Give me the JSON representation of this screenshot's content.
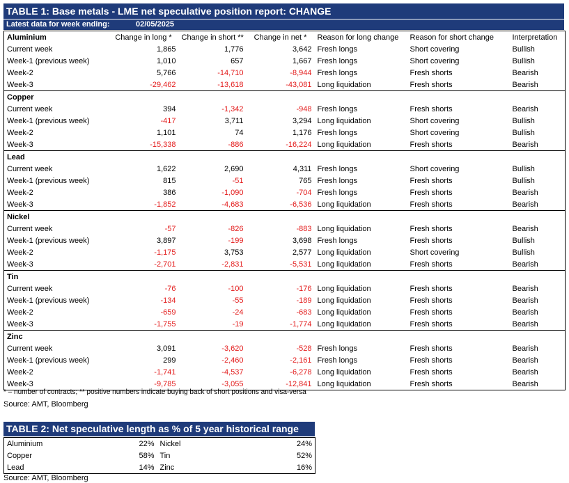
{
  "table1": {
    "title": "TABLE 1: Base metals - LME net speculative position report: CHANGE",
    "date_label": "Latest data for week ending:",
    "date_value": "02/05/2025",
    "columns": [
      "",
      "Change in long *",
      "Change in short **",
      "Change in net *",
      "Reason for long change",
      "Reason for short change",
      "Interpretation"
    ],
    "groups": [
      {
        "name": "Aluminium",
        "rows": [
          [
            "Current week",
            "1,865",
            "1,776",
            "3,642",
            "Fresh longs",
            "Short covering",
            "Bullish"
          ],
          [
            "Week-1 (previous week)",
            "1,010",
            "657",
            "1,667",
            "Fresh longs",
            "Short covering",
            "Bullish"
          ],
          [
            "Week-2",
            "5,766",
            "-14,710",
            "-8,944",
            "Fresh longs",
            "Fresh shorts",
            "Bearish"
          ],
          [
            "Week-3",
            "-29,462",
            "-13,618",
            "-43,081",
            "Long liquidation",
            "Fresh shorts",
            "Bearish"
          ]
        ]
      },
      {
        "name": "Copper",
        "rows": [
          [
            "Current week",
            "394",
            "-1,342",
            "-948",
            "Fresh longs",
            "Fresh shorts",
            "Bearish"
          ],
          [
            "Week-1 (previous week)",
            "-417",
            "3,711",
            "3,294",
            "Long liquidation",
            "Short covering",
            "Bullish"
          ],
          [
            "Week-2",
            "1,101",
            "74",
            "1,176",
            "Fresh longs",
            "Short covering",
            "Bullish"
          ],
          [
            "Week-3",
            "-15,338",
            "-886",
            "-16,224",
            "Long liquidation",
            "Fresh shorts",
            "Bearish"
          ]
        ]
      },
      {
        "name": "Lead",
        "rows": [
          [
            "Current week",
            "1,622",
            "2,690",
            "4,311",
            "Fresh longs",
            "Short covering",
            "Bullish"
          ],
          [
            "Week-1 (previous week)",
            "815",
            "-51",
            "765",
            "Fresh longs",
            "Fresh shorts",
            "Bullish"
          ],
          [
            "Week-2",
            "386",
            "-1,090",
            "-704",
            "Fresh longs",
            "Fresh shorts",
            "Bearish"
          ],
          [
            "Week-3",
            "-1,852",
            "-4,683",
            "-6,536",
            "Long liquidation",
            "Fresh shorts",
            "Bearish"
          ]
        ]
      },
      {
        "name": "Nickel",
        "rows": [
          [
            "Current week",
            "-57",
            "-826",
            "-883",
            "Long liquidation",
            "Fresh shorts",
            "Bearish"
          ],
          [
            "Week-1 (previous week)",
            "3,897",
            "-199",
            "3,698",
            "Fresh longs",
            "Fresh shorts",
            "Bullish"
          ],
          [
            "Week-2",
            "-1,175",
            "3,753",
            "2,577",
            "Long liquidation",
            "Short covering",
            "Bullish"
          ],
          [
            "Week-3",
            "-2,701",
            "-2,831",
            "-5,531",
            "Long liquidation",
            "Fresh shorts",
            "Bearish"
          ]
        ]
      },
      {
        "name": "Tin",
        "rows": [
          [
            "Current week",
            "-76",
            "-100",
            "-176",
            "Long liquidation",
            "Fresh shorts",
            "Bearish"
          ],
          [
            "Week-1 (previous week)",
            "-134",
            "-55",
            "-189",
            "Long liquidation",
            "Fresh shorts",
            "Bearish"
          ],
          [
            "Week-2",
            "-659",
            "-24",
            "-683",
            "Long liquidation",
            "Fresh shorts",
            "Bearish"
          ],
          [
            "Week-3",
            "-1,755",
            "-19",
            "-1,774",
            "Long liquidation",
            "Fresh shorts",
            "Bearish"
          ]
        ]
      },
      {
        "name": "Zinc",
        "rows": [
          [
            "Current week",
            "3,091",
            "-3,620",
            "-528",
            "Fresh longs",
            "Fresh shorts",
            "Bearish"
          ],
          [
            "Week-1 (previous week)",
            "299",
            "-2,460",
            "-2,161",
            "Fresh longs",
            "Fresh shorts",
            "Bearish"
          ],
          [
            "Week-2",
            "-1,741",
            "-4,537",
            "-6,278",
            "Long liquidation",
            "Fresh shorts",
            "Bearish"
          ],
          [
            "Week-3",
            "-9,785",
            "-3,055",
            "-12,841",
            "Long liquidation",
            "Fresh shorts",
            "Bearish"
          ]
        ]
      }
    ],
    "footnote": "* – number of contracts; ** positive numbers indicate buying back of short positions and visa-versa",
    "source": "Source: AMT, Bloomberg"
  },
  "table2": {
    "title": "TABLE 2: Net speculative length as % of 5 year historical range",
    "rows": [
      [
        "Aluminium",
        "22%",
        "Nickel",
        "24%"
      ],
      [
        "Copper",
        "58%",
        "Tin",
        "52%"
      ],
      [
        "Lead",
        "14%",
        "Zinc",
        "16%"
      ]
    ],
    "source": "Source: AMT, Bloomberg"
  },
  "colors": {
    "header_bg": "#1f3b7a",
    "negative": "#e31b1b"
  }
}
